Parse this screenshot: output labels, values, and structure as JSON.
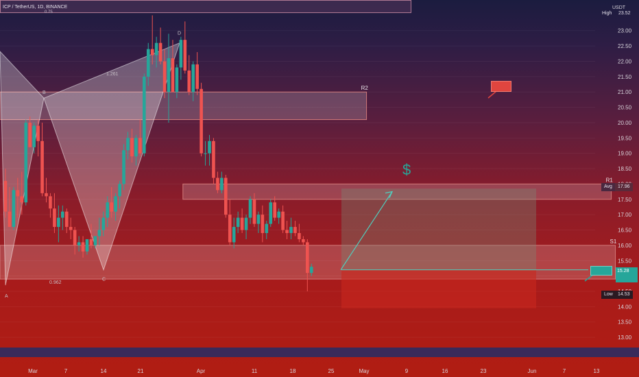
{
  "header": {
    "symbol": "ICP / TetherUS, 1D, BINANCE",
    "currency": "USDT",
    "fib_top": "0.75"
  },
  "price_axis": {
    "high_tag": "High",
    "high_value": "23.52",
    "avg_tag": "Avg",
    "avg_value": "17.96",
    "low_tag": "Low",
    "low_value": "14.53",
    "current_price": "15.28"
  },
  "chart_data": {
    "type": "candlestick",
    "symbol": "ICP / TetherUS",
    "interval": "1D",
    "exchange": "BINANCE",
    "y_unit": "USDT",
    "ylim": [
      12.6,
      24.0
    ],
    "y_ticks": [
      13.0,
      13.5,
      14.0,
      14.5,
      15.0,
      15.5,
      16.0,
      16.5,
      17.0,
      17.5,
      18.0,
      18.5,
      19.0,
      19.5,
      20.0,
      20.5,
      21.0,
      21.5,
      22.0,
      22.5,
      23.0
    ],
    "x_ticks": [
      "Mar",
      "7",
      "14",
      "21",
      "Apr",
      "11",
      "18",
      "25",
      "May",
      "9",
      "16",
      "23",
      "Jun",
      "7",
      "13"
    ],
    "candles": [
      {
        "o": 18.1,
        "h": 18.5,
        "l": 16.9,
        "c": 17.1
      },
      {
        "o": 17.1,
        "h": 17.9,
        "l": 16.6,
        "c": 16.6
      },
      {
        "o": 16.6,
        "h": 17.9,
        "l": 16.5,
        "c": 17.8
      },
      {
        "o": 17.8,
        "h": 18.2,
        "l": 16.9,
        "c": 17.6
      },
      {
        "o": 17.6,
        "h": 18.4,
        "l": 17.0,
        "c": 17.4
      },
      {
        "o": 17.4,
        "h": 20.1,
        "l": 17.3,
        "c": 20.0
      },
      {
        "o": 20.0,
        "h": 20.2,
        "l": 19.2,
        "c": 19.2
      },
      {
        "o": 19.2,
        "h": 20.0,
        "l": 19.0,
        "c": 19.9
      },
      {
        "o": 19.9,
        "h": 20.1,
        "l": 18.9,
        "c": 19.4
      },
      {
        "o": 19.4,
        "h": 20.0,
        "l": 17.6,
        "c": 17.7
      },
      {
        "o": 17.7,
        "h": 18.2,
        "l": 17.4,
        "c": 17.6
      },
      {
        "o": 17.6,
        "h": 17.7,
        "l": 16.9,
        "c": 17.2
      },
      {
        "o": 17.2,
        "h": 17.7,
        "l": 16.4,
        "c": 16.6
      },
      {
        "o": 16.6,
        "h": 17.3,
        "l": 16.1,
        "c": 16.9
      },
      {
        "o": 16.9,
        "h": 17.3,
        "l": 16.5,
        "c": 17.1
      },
      {
        "o": 17.1,
        "h": 17.2,
        "l": 16.4,
        "c": 16.6
      },
      {
        "o": 16.6,
        "h": 16.9,
        "l": 16.2,
        "c": 16.5
      },
      {
        "o": 16.5,
        "h": 16.6,
        "l": 15.7,
        "c": 16.0
      },
      {
        "o": 16.0,
        "h": 16.3,
        "l": 15.8,
        "c": 16.1
      },
      {
        "o": 16.1,
        "h": 16.3,
        "l": 15.6,
        "c": 15.8
      },
      {
        "o": 15.8,
        "h": 16.2,
        "l": 15.7,
        "c": 16.2
      },
      {
        "o": 16.2,
        "h": 16.7,
        "l": 15.9,
        "c": 16.0
      },
      {
        "o": 16.0,
        "h": 16.3,
        "l": 15.9,
        "c": 16.3
      },
      {
        "o": 16.3,
        "h": 16.9,
        "l": 16.0,
        "c": 16.5
      },
      {
        "o": 16.5,
        "h": 17.1,
        "l": 16.3,
        "c": 16.9
      },
      {
        "o": 16.9,
        "h": 17.6,
        "l": 16.6,
        "c": 17.4
      },
      {
        "o": 17.4,
        "h": 17.9,
        "l": 16.9,
        "c": 17.1
      },
      {
        "o": 17.1,
        "h": 17.7,
        "l": 16.8,
        "c": 17.6
      },
      {
        "o": 17.6,
        "h": 18.1,
        "l": 17.2,
        "c": 18.0
      },
      {
        "o": 18.0,
        "h": 19.3,
        "l": 17.8,
        "c": 19.1
      },
      {
        "o": 19.1,
        "h": 19.7,
        "l": 18.8,
        "c": 19.5
      },
      {
        "o": 19.5,
        "h": 19.8,
        "l": 18.7,
        "c": 18.9
      },
      {
        "o": 18.9,
        "h": 19.6,
        "l": 18.6,
        "c": 19.5
      },
      {
        "o": 19.5,
        "h": 20.1,
        "l": 18.9,
        "c": 19.0
      },
      {
        "o": 19.0,
        "h": 21.6,
        "l": 18.9,
        "c": 21.5
      },
      {
        "o": 21.5,
        "h": 22.6,
        "l": 21.2,
        "c": 22.4
      },
      {
        "o": 22.4,
        "h": 23.5,
        "l": 21.9,
        "c": 22.2
      },
      {
        "o": 22.2,
        "h": 22.8,
        "l": 21.8,
        "c": 22.6
      },
      {
        "o": 22.6,
        "h": 23.1,
        "l": 21.9,
        "c": 22.0
      },
      {
        "o": 22.0,
        "h": 22.4,
        "l": 20.8,
        "c": 21.0
      },
      {
        "o": 21.0,
        "h": 22.9,
        "l": 20.0,
        "c": 22.1
      },
      {
        "o": 22.1,
        "h": 22.7,
        "l": 21.0,
        "c": 21.0
      },
      {
        "o": 21.0,
        "h": 21.9,
        "l": 20.8,
        "c": 21.8
      },
      {
        "o": 21.8,
        "h": 22.8,
        "l": 21.4,
        "c": 22.7
      },
      {
        "o": 22.7,
        "h": 23.3,
        "l": 21.6,
        "c": 21.7
      },
      {
        "o": 21.7,
        "h": 22.2,
        "l": 20.9,
        "c": 21.0
      },
      {
        "o": 21.0,
        "h": 22.0,
        "l": 20.7,
        "c": 21.9
      },
      {
        "o": 21.9,
        "h": 22.3,
        "l": 20.9,
        "c": 21.1
      },
      {
        "o": 21.1,
        "h": 21.3,
        "l": 18.9,
        "c": 19.0
      },
      {
        "o": 19.0,
        "h": 19.4,
        "l": 18.6,
        "c": 19.0
      },
      {
        "o": 19.0,
        "h": 19.6,
        "l": 18.6,
        "c": 19.4
      },
      {
        "o": 19.4,
        "h": 19.5,
        "l": 18.0,
        "c": 18.2
      },
      {
        "o": 18.2,
        "h": 18.4,
        "l": 17.7,
        "c": 17.8
      },
      {
        "o": 17.8,
        "h": 18.4,
        "l": 17.7,
        "c": 18.2
      },
      {
        "o": 18.2,
        "h": 18.3,
        "l": 16.9,
        "c": 17.0
      },
      {
        "o": 17.0,
        "h": 17.5,
        "l": 16.0,
        "c": 16.1
      },
      {
        "o": 16.1,
        "h": 16.9,
        "l": 15.9,
        "c": 16.6
      },
      {
        "o": 16.6,
        "h": 17.1,
        "l": 16.4,
        "c": 16.9
      },
      {
        "o": 16.9,
        "h": 17.2,
        "l": 16.4,
        "c": 16.5
      },
      {
        "o": 16.5,
        "h": 17.0,
        "l": 16.2,
        "c": 16.9
      },
      {
        "o": 16.9,
        "h": 17.6,
        "l": 16.7,
        "c": 17.5
      },
      {
        "o": 17.5,
        "h": 17.7,
        "l": 16.6,
        "c": 16.7
      },
      {
        "o": 16.7,
        "h": 17.1,
        "l": 16.4,
        "c": 17.0
      },
      {
        "o": 17.0,
        "h": 17.3,
        "l": 16.1,
        "c": 16.4
      },
      {
        "o": 16.4,
        "h": 16.8,
        "l": 16.2,
        "c": 16.7
      },
      {
        "o": 16.7,
        "h": 17.5,
        "l": 16.6,
        "c": 17.4
      },
      {
        "o": 17.4,
        "h": 17.6,
        "l": 16.8,
        "c": 16.9
      },
      {
        "o": 16.9,
        "h": 17.2,
        "l": 16.7,
        "c": 17.1
      },
      {
        "o": 17.1,
        "h": 17.3,
        "l": 16.4,
        "c": 16.5
      },
      {
        "o": 16.5,
        "h": 16.8,
        "l": 16.2,
        "c": 16.4
      },
      {
        "o": 16.4,
        "h": 16.9,
        "l": 16.2,
        "c": 16.6
      },
      {
        "o": 16.6,
        "h": 16.8,
        "l": 16.3,
        "c": 16.4
      },
      {
        "o": 16.4,
        "h": 16.7,
        "l": 16.1,
        "c": 16.2
      },
      {
        "o": 16.2,
        "h": 16.3,
        "l": 16.0,
        "c": 16.1
      },
      {
        "o": 16.1,
        "h": 16.2,
        "l": 14.5,
        "c": 15.1
      },
      {
        "o": 15.1,
        "h": 15.4,
        "l": 15.0,
        "c": 15.3
      }
    ],
    "zones": [
      {
        "label": "R2",
        "top": 21.0,
        "bottom": 20.1,
        "x_end_index": 88
      },
      {
        "label": "R1",
        "top": 18.0,
        "bottom": 17.5,
        "x_start_index": 44,
        "x_end_index": 148
      },
      {
        "label": "S1",
        "top": 16.0,
        "bottom": 14.9,
        "x_end_index": 149
      }
    ],
    "harmonic_pattern": {
      "points": {
        "A": 14.7,
        "B": 20.8,
        "C": 15.2,
        "D": 22.6
      },
      "labels": [
        "A",
        "B",
        "C",
        "D"
      ],
      "ratios": [
        "1.261",
        "0.962"
      ]
    },
    "projection": {
      "entry": 15.2,
      "target": 17.75,
      "stop_bottom": 13.95,
      "box_top": 17.85
    }
  }
}
